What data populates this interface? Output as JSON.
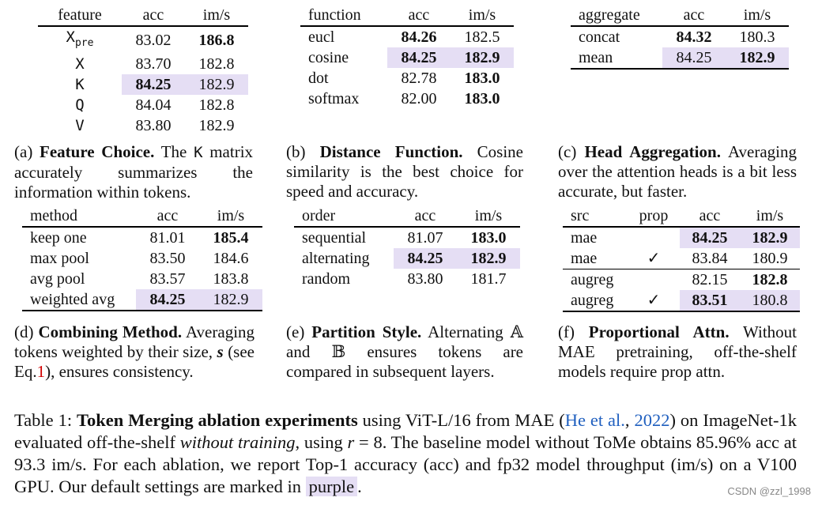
{
  "tables": {
    "a": {
      "headers": [
        "feature",
        "acc",
        "im/s"
      ],
      "rows": [
        {
          "k_main": "X",
          "k_sub": "pre",
          "acc": "83.02",
          "ims": "186.8"
        },
        {
          "k_main": "X",
          "acc": "83.70",
          "ims": "182.8"
        },
        {
          "k_main": "K",
          "acc": "84.25",
          "ims": "182.9"
        },
        {
          "k_main": "Q",
          "acc": "84.04",
          "ims": "182.8"
        },
        {
          "k_main": "V",
          "acc": "83.80",
          "ims": "182.9"
        }
      ]
    },
    "b": {
      "headers": [
        "function",
        "acc",
        "im/s"
      ],
      "rows": [
        {
          "k": "eucl",
          "acc": "84.26",
          "ims": "182.5"
        },
        {
          "k": "cosine",
          "acc": "84.25",
          "ims": "182.9"
        },
        {
          "k": "dot",
          "acc": "82.78",
          "ims": "183.0"
        },
        {
          "k": "softmax",
          "acc": "82.00",
          "ims": "183.0"
        }
      ]
    },
    "c": {
      "headers": [
        "aggregate",
        "acc",
        "im/s"
      ],
      "rows": [
        {
          "k": "concat",
          "acc": "84.32",
          "ims": "180.3"
        },
        {
          "k": "mean",
          "acc": "84.25",
          "ims": "182.9"
        }
      ]
    },
    "d": {
      "headers": [
        "method",
        "acc",
        "im/s"
      ],
      "rows": [
        {
          "k": "keep one",
          "acc": "81.01",
          "ims": "185.4"
        },
        {
          "k": "max pool",
          "acc": "83.50",
          "ims": "184.6"
        },
        {
          "k": "avg pool",
          "acc": "83.57",
          "ims": "183.8"
        },
        {
          "k": "weighted avg",
          "acc": "84.25",
          "ims": "182.9"
        }
      ]
    },
    "e": {
      "headers": [
        "order",
        "acc",
        "im/s"
      ],
      "rows": [
        {
          "k": "sequential",
          "acc": "81.07",
          "ims": "183.0"
        },
        {
          "k": "alternating",
          "acc": "84.25",
          "ims": "182.9"
        },
        {
          "k": "random",
          "acc": "83.80",
          "ims": "181.7"
        }
      ]
    },
    "f": {
      "headers": [
        "src",
        "prop",
        "acc",
        "im/s"
      ],
      "check": "✓",
      "rows": [
        {
          "src": "mae",
          "acc": "84.25",
          "ims": "182.9"
        },
        {
          "src": "mae",
          "acc": "83.84",
          "ims": "180.9"
        },
        {
          "src": "augreg",
          "acc": "82.15",
          "ims": "182.8"
        },
        {
          "src": "augreg",
          "acc": "83.51",
          "ims": "180.8"
        }
      ]
    }
  },
  "captions": {
    "a": {
      "label": "(a)",
      "title": "Feature Choice.",
      "pre": "The",
      "code": "K",
      "post": "matrix accurately summarizes the information within tokens."
    },
    "b": {
      "label": "(b)",
      "title": "Distance Function.",
      "text": "Cosine similarity is the best choice for speed and accuracy."
    },
    "c": {
      "label": "(c)",
      "title": "Head Aggregation.",
      "text": "Averaging over the attention heads is a bit less accurate, but faster."
    },
    "d": {
      "label": "(d)",
      "title": "Combining Method.",
      "pre": "Averaging tokens weighted by their size,",
      "sym": "s",
      "mid": "(see Eq.",
      "ref": "1",
      "post": "), ensures consistency."
    },
    "e": {
      "label": "(e)",
      "title": "Partition Style.",
      "pre": "Alternating",
      "setA": "𝔸",
      "mid": "and",
      "setB": "𝔹",
      "post": "ensures tokens are compared in subsequent layers."
    },
    "f": {
      "label": "(f)",
      "title": "Proportional Attn.",
      "text": "Without MAE pretraining, off-the-shelf models require prop attn."
    }
  },
  "main_caption": {
    "label": "Table 1:",
    "title": "Token Merging ablation experiments",
    "t1": "using ViT-L/16 from MAE (",
    "cite_author": "He et al.",
    "cite_sep": ",",
    "cite_year": "2022",
    "t2": ") on ImageNet-1k evaluated off-the-shelf",
    "italic": "without training",
    "t3": ", using",
    "var": "r",
    "t4": "= 8. The baseline model without ToMe obtains 85.96% acc at 93.3 im/s. For each ablation, we report Top-1 accuracy (acc) and fp32 model throughput (im/s) on a V100 GPU. Our default settings are marked in",
    "purple_word": "purple",
    "t5": "."
  },
  "watermark": "CSDN @zzl_1998",
  "colors": {
    "highlight": "#e5def4",
    "ref": "#d20000",
    "cite": "#1f5fbf"
  }
}
